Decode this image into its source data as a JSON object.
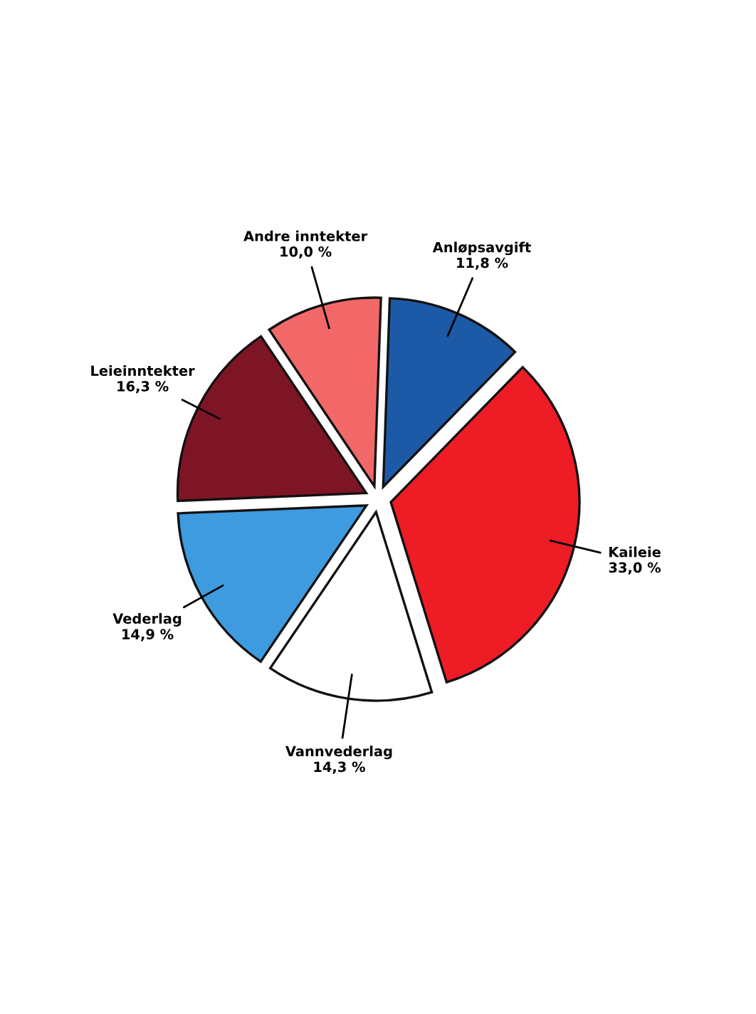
{
  "chart_data": {
    "type": "pie",
    "categories": [
      "Anløpsavgift",
      "Kaileie",
      "Vannvederlag",
      "Vederlag",
      "Leieinntekter",
      "Andre inntekter"
    ],
    "values": [
      11.8,
      33.0,
      14.3,
      14.9,
      16.3,
      10.0
    ],
    "value_labels": [
      "11,8 %",
      "33,0 %",
      "14,3 %",
      "14,9 %",
      "16,3 %",
      "10,0 %"
    ],
    "colors": [
      "#1c5aa8",
      "#ee1c25",
      "#ffffff",
      "#3f9be0",
      "#7e1525",
      "#f26868"
    ],
    "legend": false
  }
}
